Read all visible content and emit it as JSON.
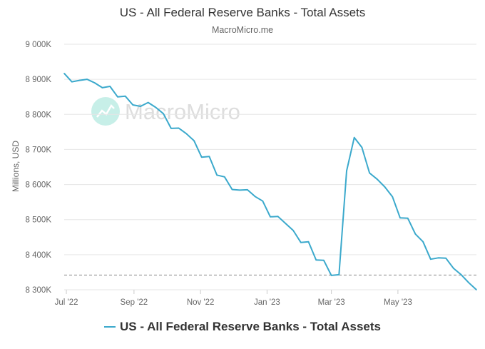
{
  "title": "US - All Federal Reserve Banks - Total Assets",
  "subtitle": "MacroMicro.me",
  "watermark": "MacroMicro",
  "colors": {
    "series": "#3ba9cc",
    "grid": "#e6e6e6",
    "reference": "#888888",
    "watermark": "#dddddd",
    "watermark_icon": "#c7efe8"
  },
  "chart_data": {
    "type": "line",
    "title": "US - All Federal Reserve Banks - Total Assets",
    "subtitle": "MacroMicro.me",
    "ylabel": "Millions, USD",
    "xlabel": "",
    "ylim": [
      8300000,
      9000000
    ],
    "yticks": [
      {
        "value": 8300000,
        "label": "8 300K"
      },
      {
        "value": 8400000,
        "label": "8 400K"
      },
      {
        "value": 8500000,
        "label": "8 500K"
      },
      {
        "value": 8600000,
        "label": "8 600K"
      },
      {
        "value": 8700000,
        "label": "8 700K"
      },
      {
        "value": 8800000,
        "label": "8 800K"
      },
      {
        "value": 8900000,
        "label": "8 900K"
      },
      {
        "value": 9000000,
        "label": "9 000K"
      }
    ],
    "xticks": [
      {
        "value": "2022-07-01",
        "label": "Jul '22"
      },
      {
        "value": "2022-09-01",
        "label": "Sep '22"
      },
      {
        "value": "2022-11-01",
        "label": "Nov '22"
      },
      {
        "value": "2023-01-01",
        "label": "Jan '23"
      },
      {
        "value": "2023-03-01",
        "label": "Mar '23"
      },
      {
        "value": "2023-05-01",
        "label": "May '23"
      }
    ],
    "xlim": [
      "2022-06-29",
      "2023-07-12"
    ],
    "reference_line": 8342000,
    "grid": true,
    "legend": "bottom-center",
    "series": [
      {
        "name": "US - All Federal Reserve Banks - Total Assets",
        "x": [
          "2022-06-29",
          "2022-07-06",
          "2022-07-13",
          "2022-07-20",
          "2022-07-27",
          "2022-08-03",
          "2022-08-10",
          "2022-08-17",
          "2022-08-24",
          "2022-08-31",
          "2022-09-07",
          "2022-09-14",
          "2022-09-21",
          "2022-09-28",
          "2022-10-05",
          "2022-10-12",
          "2022-10-19",
          "2022-10-26",
          "2022-11-02",
          "2022-11-09",
          "2022-11-16",
          "2022-11-23",
          "2022-11-30",
          "2022-12-07",
          "2022-12-14",
          "2022-12-21",
          "2022-12-28",
          "2023-01-04",
          "2023-01-11",
          "2023-01-18",
          "2023-01-25",
          "2023-02-01",
          "2023-02-08",
          "2023-02-15",
          "2023-02-22",
          "2023-03-01",
          "2023-03-08",
          "2023-03-15",
          "2023-03-22",
          "2023-03-29",
          "2023-04-05",
          "2023-04-12",
          "2023-04-19",
          "2023-04-26",
          "2023-05-03",
          "2023-05-10",
          "2023-05-17",
          "2023-05-24",
          "2023-05-31",
          "2023-06-07",
          "2023-06-14",
          "2023-06-21",
          "2023-06-28",
          "2023-07-05",
          "2023-07-12"
        ],
        "values": [
          8917000,
          8893000,
          8897000,
          8900000,
          8890000,
          8876000,
          8880000,
          8850000,
          8852000,
          8827000,
          8823000,
          8834000,
          8820000,
          8802000,
          8760000,
          8761000,
          8745000,
          8725000,
          8678000,
          8680000,
          8627000,
          8622000,
          8586000,
          8584000,
          8585000,
          8566000,
          8553000,
          8508000,
          8509000,
          8489000,
          8469000,
          8435000,
          8437000,
          8385000,
          8384000,
          8341000,
          8343000,
          8639000,
          8734000,
          8706000,
          8633000,
          8615000,
          8593000,
          8565000,
          8505000,
          8504000,
          8459000,
          8437000,
          8387000,
          8391000,
          8390000,
          8361000,
          8343000,
          8320000,
          8300000
        ]
      }
    ]
  }
}
